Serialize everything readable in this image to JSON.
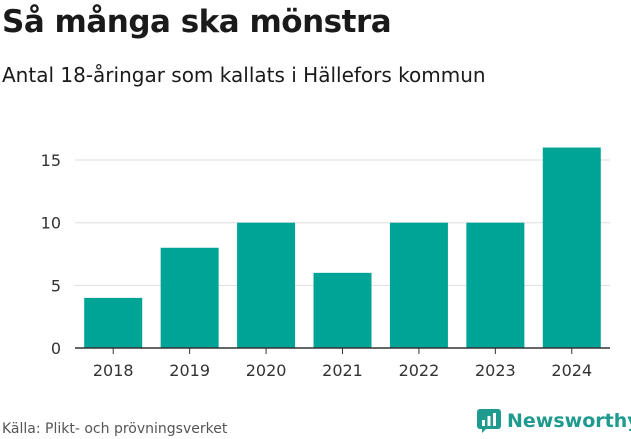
{
  "title": "Så många ska mönstra",
  "subtitle": "Antal 18-åringar som kallats i Hällefors kommun",
  "source": "Källa: Plikt- och prövningsverket",
  "brand": "Newsworthy",
  "colors": {
    "bar": "#00a496",
    "grid": "#dddddd",
    "axis": "#333333",
    "brand": "#1f9a8e"
  },
  "chart_data": {
    "type": "bar",
    "categories": [
      "2018",
      "2019",
      "2020",
      "2021",
      "2022",
      "2023",
      "2024"
    ],
    "values": [
      4,
      8,
      10,
      6,
      10,
      10,
      16
    ],
    "ylim": [
      0,
      17
    ],
    "yticks": [
      0,
      5,
      10,
      15
    ],
    "xlabel": "",
    "ylabel": "",
    "grid": true
  }
}
